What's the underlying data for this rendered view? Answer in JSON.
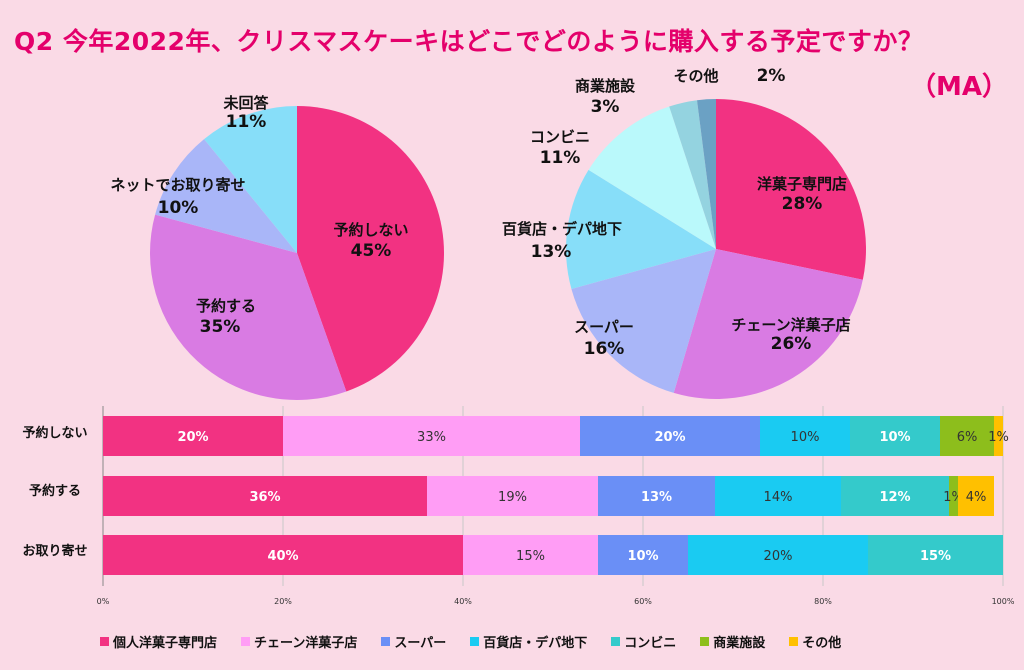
{
  "title": "Q2 今年2022年、クリスマスケーキはどこでどのように購入する予定ですか？",
  "subtitle": "（MA）",
  "chart_data": [
    {
      "type": "pie",
      "id": "pie1",
      "slices": [
        {
          "label": "予約しない",
          "pct_text": "45%",
          "value": 45,
          "color": "#f23282"
        },
        {
          "label": "予約する",
          "pct_text": "35%",
          "value": 35,
          "color": "#d97be3"
        },
        {
          "label": "ネットでお取り寄せ",
          "pct_text": "10%",
          "value": 10,
          "color": "#a9b6f8"
        },
        {
          "label": "未回答",
          "pct_text": "11%",
          "value": 11,
          "color": "#87def9"
        }
      ]
    },
    {
      "type": "pie",
      "id": "pie2",
      "slices": [
        {
          "label": "洋菓子専門店",
          "pct_text": "28%",
          "value": 28,
          "color": "#f23282"
        },
        {
          "label": "チェーン洋菓子店",
          "pct_text": "26%",
          "value": 26,
          "color": "#d97be3"
        },
        {
          "label": "スーパー",
          "pct_text": "16%",
          "value": 16,
          "color": "#a9b6f8"
        },
        {
          "label": "百貨店・デパ地下",
          "pct_text": "13%",
          "value": 13,
          "color": "#87def9"
        },
        {
          "label": "コンビニ",
          "pct_text": "11%",
          "value": 11,
          "color": "#baf9fb"
        },
        {
          "label": "商業施設",
          "pct_text": "3%",
          "value": 3,
          "color": "#94d3e0"
        },
        {
          "label": "その他",
          "pct_text": "2%",
          "value": 2,
          "color": "#6ba1c4"
        }
      ]
    },
    {
      "type": "bar",
      "orientation": "horizontal",
      "stacked": "100%",
      "categories": [
        "予約しない",
        "予約する",
        "お取り寄せ"
      ],
      "xlim": [
        0,
        100
      ],
      "ticks": [
        "0%",
        "20%",
        "40%",
        "60%",
        "80%",
        "100%"
      ],
      "series": [
        {
          "name": "個人洋菓子専門店",
          "color": "#f23282",
          "label_color": "#ffffff",
          "values": [
            20,
            36,
            40
          ]
        },
        {
          "name": "チェーン洋菓子店",
          "color": "#ff9df5",
          "label_color": "#333333",
          "values": [
            33,
            19,
            15
          ]
        },
        {
          "name": "スーパー",
          "color": "#6a8ff6",
          "label_color": "#ffffff",
          "values": [
            20,
            13,
            10
          ]
        },
        {
          "name": "百貨店・デパ地下",
          "color": "#1acbf2",
          "label_color": "#333333",
          "values": [
            10,
            14,
            20
          ]
        },
        {
          "name": "コンビニ",
          "color": "#34cacb",
          "label_color": "#ffffff",
          "values": [
            10,
            12,
            15
          ]
        },
        {
          "name": "商業施設",
          "color": "#8dbe1c",
          "label_color": "#333333",
          "values": [
            6,
            1,
            0
          ]
        },
        {
          "name": "その他",
          "color": "#ffc000",
          "label_color": "#333333",
          "values": [
            1,
            4,
            0
          ]
        }
      ]
    }
  ]
}
